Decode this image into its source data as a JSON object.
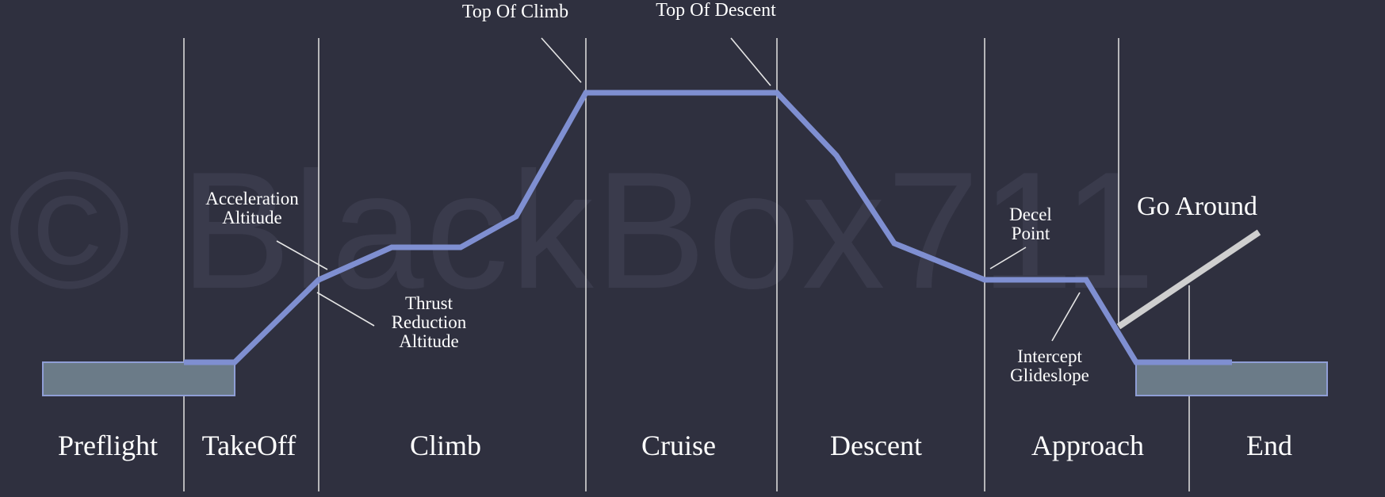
{
  "watermark": "© BlackBox711",
  "colors": {
    "background": "#2f303f",
    "profile_line": "#7f8fd1",
    "go_around_line": "#cfcfcf",
    "divider": "#d8d8d8",
    "runway_fill": "#6b7b88",
    "runway_border": "#8f9ed6",
    "text": "#ffffff"
  },
  "phases": [
    "Preflight",
    "TakeOff",
    "Climb",
    "Cruise",
    "Descent",
    "Approach",
    "End"
  ],
  "annotations": {
    "top_of_climb": "Top Of Climb",
    "top_of_descent": "Top Of Descent",
    "acceleration_altitude": [
      "Acceleration",
      "Altitude"
    ],
    "thrust_reduction_altitude": [
      "Thrust",
      "Reduction",
      "Altitude"
    ],
    "decel_point": [
      "Decel",
      "Point"
    ],
    "intercept_glideslope": [
      "Intercept",
      "Glideslope"
    ],
    "go_around": "Go Around"
  }
}
